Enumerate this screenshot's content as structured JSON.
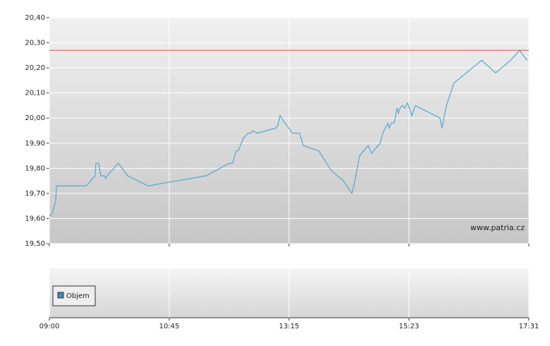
{
  "chart_data": {
    "type": "line",
    "x": [
      0,
      0.024,
      0.053,
      0.059,
      0.306,
      0.382,
      0.388,
      0.412,
      0.429,
      0.459,
      0.471,
      0.482,
      0.576,
      0.653,
      0.824,
      1.306,
      1.5,
      1.529,
      1.559,
      1.576,
      1.618,
      1.659,
      1.682,
      1.694,
      1.735,
      1.888,
      1.906,
      1.924,
      1.965,
      2.029,
      2.088,
      2.118,
      2.247,
      2.353,
      2.453,
      2.524,
      2.553,
      2.588,
      2.659,
      2.688,
      2.759,
      2.782,
      2.812,
      2.824,
      2.835,
      2.853,
      2.871,
      2.882,
      2.9,
      2.912,
      2.924,
      2.947,
      2.965,
      2.988,
      3.024,
      3.053,
      3.259,
      3.276,
      3.312,
      3.376,
      3.606,
      3.724,
      3.847,
      3.924,
      3.953,
      3.988
    ],
    "values": [
      19.61,
      19.62,
      19.67,
      19.73,
      19.73,
      19.77,
      19.82,
      19.82,
      19.77,
      19.77,
      19.76,
      19.77,
      19.82,
      19.77,
      19.73,
      19.77,
      19.82,
      19.82,
      19.87,
      19.87,
      19.92,
      19.94,
      19.94,
      19.95,
      19.94,
      19.96,
      19.97,
      20.01,
      19.98,
      19.94,
      19.94,
      19.89,
      19.87,
      19.79,
      19.75,
      19.7,
      19.76,
      19.85,
      19.89,
      19.86,
      19.9,
      19.94,
      19.97,
      19.98,
      19.96,
      19.98,
      19.98,
      19.99,
      20.04,
      20.02,
      20.04,
      20.05,
      20.04,
      20.06,
      20.01,
      20.05,
      20.0,
      19.96,
      20.05,
      20.14,
      20.23,
      20.18,
      20.23,
      20.27,
      20.25,
      20.23
    ],
    "color": "#4fa8d0",
    "reference_line": 20.27,
    "reference_color": "#e05050",
    "xlim": [
      0,
      4
    ],
    "xticks": [
      {
        "value": 0,
        "label": "09:00"
      },
      {
        "value": 1,
        "label": "10:45"
      },
      {
        "value": 2,
        "label": "13:15"
      },
      {
        "value": 3,
        "label": "15:23"
      },
      {
        "value": 4,
        "label": "17:31"
      }
    ],
    "ylim": [
      19.5,
      20.4
    ],
    "yticks": [
      {
        "value": 19.5,
        "label": "19,50"
      },
      {
        "value": 19.6,
        "label": "19,60"
      },
      {
        "value": 19.7,
        "label": "19,70"
      },
      {
        "value": 19.8,
        "label": "19,80"
      },
      {
        "value": 19.9,
        "label": "19,90"
      },
      {
        "value": 20.0,
        "label": "20,00"
      },
      {
        "value": 20.1,
        "label": "20,10"
      },
      {
        "value": 20.2,
        "label": "20,20"
      },
      {
        "value": 20.3,
        "label": "20,30"
      },
      {
        "value": 20.4,
        "label": "20,40"
      }
    ],
    "grid": true,
    "watermark": "www.patria.cz",
    "volume_legend": "Objem",
    "volume_color": "#3a8fc0"
  }
}
